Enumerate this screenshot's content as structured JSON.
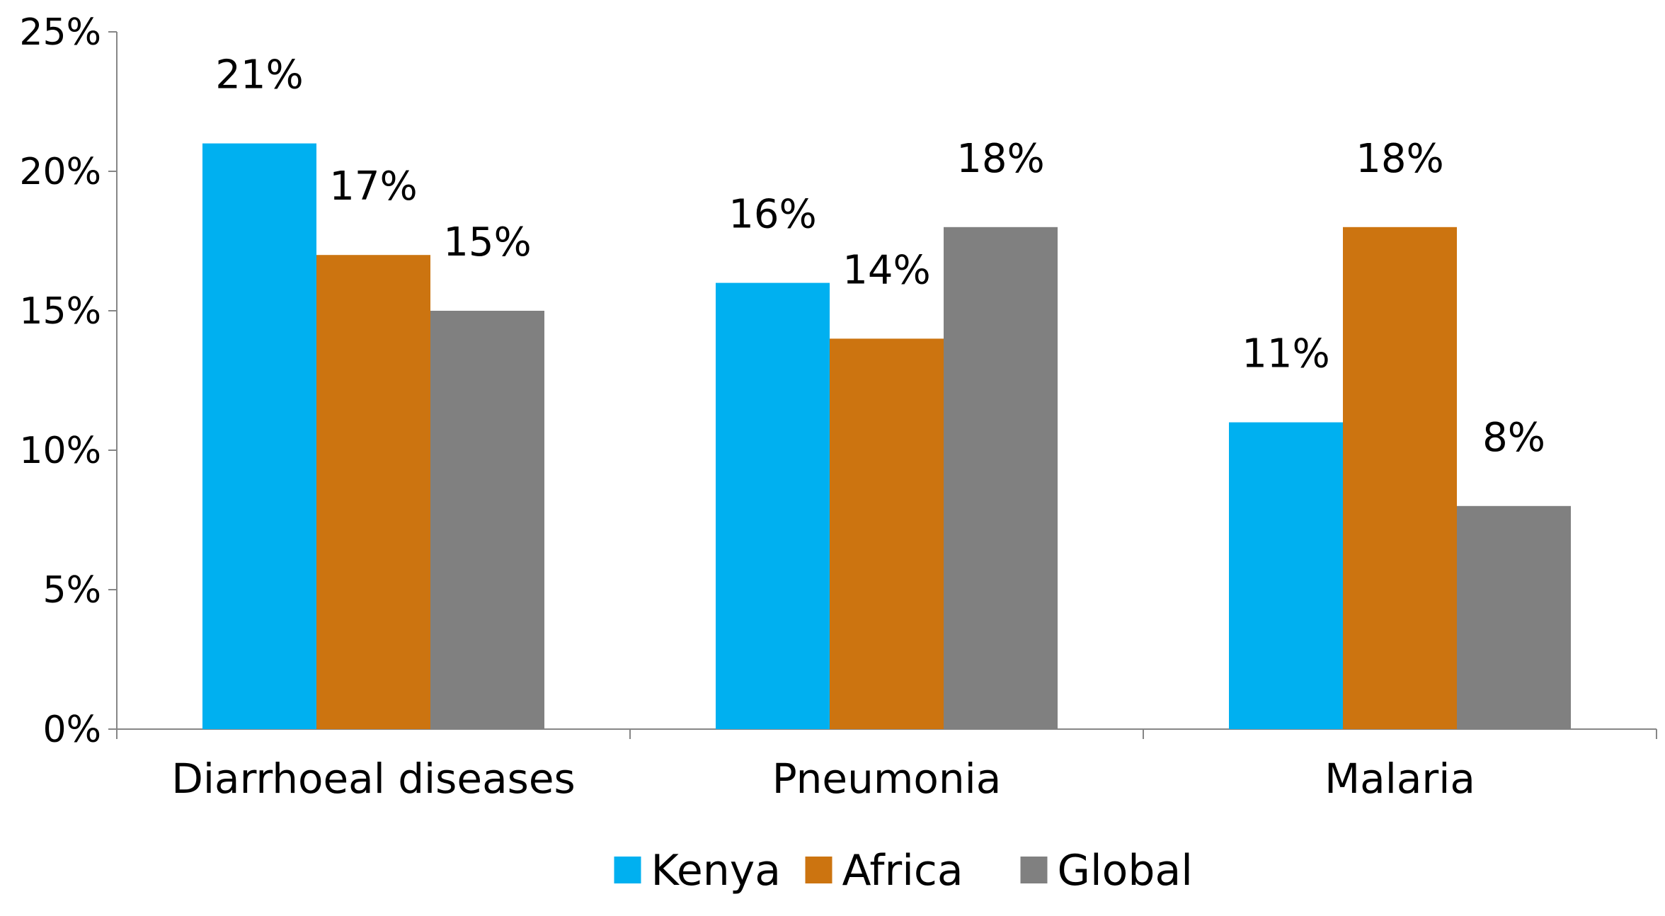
{
  "chart_data": {
    "type": "bar",
    "title": "",
    "xlabel": "",
    "ylabel": "",
    "categories": [
      "Diarrhoeal diseases",
      "Pneumonia",
      "Malaria"
    ],
    "series": [
      {
        "name": "Kenya",
        "color": "#00B0F0",
        "values": [
          21,
          16,
          11
        ],
        "labels": [
          "21%",
          "16%",
          "11%"
        ]
      },
      {
        "name": "Africa",
        "color": "#CC7410",
        "values": [
          17,
          14,
          18
        ],
        "labels": [
          "17%",
          "14%",
          "18%"
        ]
      },
      {
        "name": "Global",
        "color": "#808080",
        "values": [
          15,
          18,
          8
        ],
        "labels": [
          "15%",
          "18%",
          "8%"
        ]
      }
    ],
    "ylim": [
      0,
      25
    ],
    "yticks": [
      0,
      5,
      10,
      15,
      20,
      25
    ],
    "ytick_labels": [
      "0%",
      "5%",
      "10%",
      "15%",
      "20%",
      "25%"
    ],
    "grid": false,
    "legend_position": "bottom"
  }
}
